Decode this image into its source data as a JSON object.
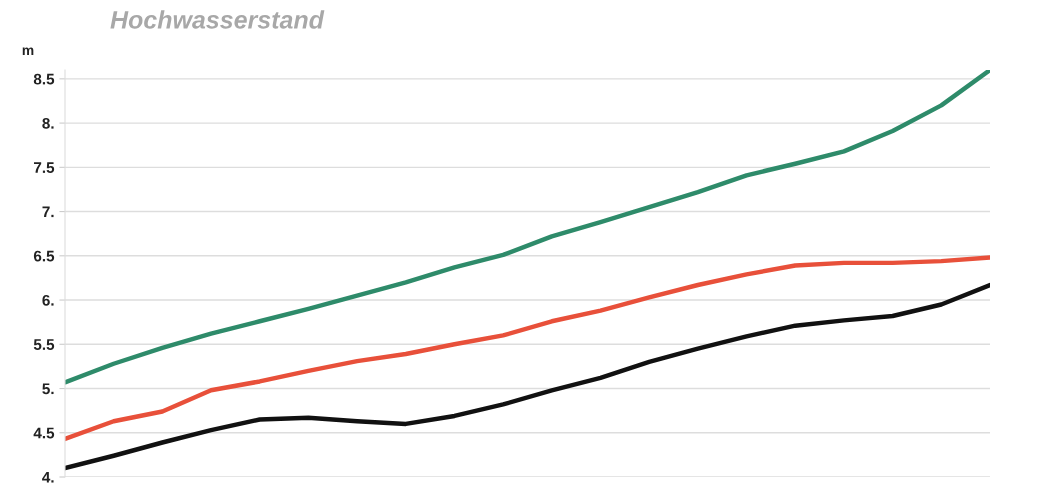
{
  "chart_data": {
    "type": "line",
    "title": "Hochwasserstand",
    "ylabel": "m",
    "categories": [
      null,
      null,
      null,
      null,
      null,
      null,
      null,
      null,
      null,
      null,
      null,
      null,
      null,
      null,
      null,
      null,
      null,
      null,
      null,
      null
    ],
    "series": [
      {
        "color": "#2e8b6a",
        "values": [
          5.07,
          5.28,
          5.46,
          5.62,
          5.76,
          5.9,
          6.05,
          6.2,
          6.37,
          6.51,
          6.72,
          6.88,
          7.05,
          7.22,
          7.41,
          7.54,
          7.68,
          7.91,
          8.2,
          8.6
        ]
      },
      {
        "color": "#e8503a",
        "values": [
          4.43,
          4.63,
          4.74,
          4.98,
          5.08,
          5.2,
          5.31,
          5.39,
          5.5,
          5.6,
          5.76,
          5.88,
          6.03,
          6.17,
          6.29,
          6.39,
          6.42,
          6.42,
          6.44,
          6.48
        ]
      },
      {
        "color": "#111111",
        "values": [
          4.1,
          4.24,
          4.39,
          4.53,
          4.65,
          4.67,
          4.63,
          4.6,
          4.69,
          4.82,
          4.98,
          5.12,
          5.3,
          5.45,
          5.59,
          5.71,
          5.77,
          5.82,
          5.95,
          6.17
        ]
      }
    ],
    "ylim": [
      4,
      8.6
    ],
    "yticks": [
      {
        "value": 4,
        "label": "4."
      },
      4.5,
      {
        "value": 5,
        "label": "5."
      },
      5.5,
      {
        "value": 6,
        "label": "6."
      },
      6.5,
      {
        "value": 7,
        "label": "7."
      },
      7.5,
      {
        "value": 8,
        "label": "8."
      },
      8.5
    ],
    "grid": "y",
    "tick_labels": "y",
    "marker": "none",
    "line_style": "solid"
  }
}
